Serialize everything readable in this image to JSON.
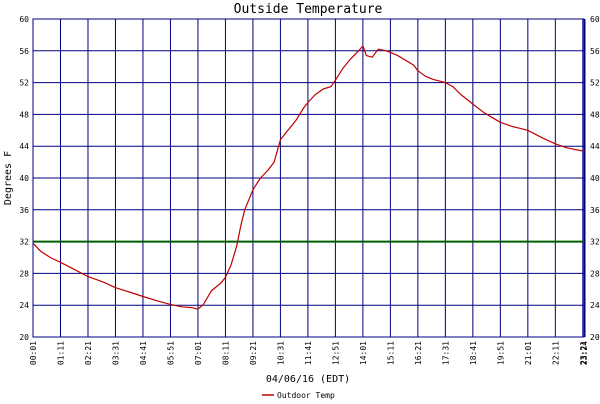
{
  "chart_data": {
    "type": "line",
    "title": "Outside Temperature",
    "xlabel": "04/06/16 (EDT)",
    "ylabel": "Degrees F",
    "ylim": [
      20,
      60
    ],
    "yticks": [
      20,
      24,
      28,
      32,
      36,
      40,
      44,
      48,
      52,
      56,
      60
    ],
    "xlim": [
      "00:01",
      "23:24"
    ],
    "xticks": [
      "00:01",
      "01:11",
      "02:21",
      "03:31",
      "04:41",
      "05:51",
      "07:01",
      "08:11",
      "09:21",
      "10:31",
      "11:41",
      "12:51",
      "14:01",
      "15:11",
      "16:21",
      "17:31",
      "18:41",
      "19:51",
      "21:01",
      "22:11",
      "23:21",
      "23:24"
    ],
    "grid": true,
    "legend_position": "bottom-left",
    "reference_line": {
      "value": 32,
      "color": "#006000"
    },
    "colors": {
      "grid": "#000080",
      "series": "#c00000",
      "reference": "#006000"
    },
    "series": [
      {
        "name": "Outdoor Temp",
        "color": "#c00000",
        "points": [
          [
            "00:01",
            31.8
          ],
          [
            "00:20",
            30.8
          ],
          [
            "00:45",
            30.0
          ],
          [
            "01:11",
            29.4
          ],
          [
            "01:50",
            28.4
          ],
          [
            "02:21",
            27.6
          ],
          [
            "03:00",
            26.9
          ],
          [
            "03:31",
            26.2
          ],
          [
            "04:10",
            25.6
          ],
          [
            "04:41",
            25.1
          ],
          [
            "05:20",
            24.5
          ],
          [
            "05:51",
            24.1
          ],
          [
            "06:20",
            23.8
          ],
          [
            "06:45",
            23.7
          ],
          [
            "07:01",
            23.5
          ],
          [
            "07:15",
            24.1
          ],
          [
            "07:35",
            25.8
          ],
          [
            "08:00",
            26.8
          ],
          [
            "08:11",
            27.5
          ],
          [
            "08:25",
            29.0
          ],
          [
            "08:40",
            31.5
          ],
          [
            "08:50",
            34.0
          ],
          [
            "09:00",
            36.0
          ],
          [
            "09:21",
            38.5
          ],
          [
            "09:40",
            40.0
          ],
          [
            "10:00",
            41.0
          ],
          [
            "10:15",
            42.0
          ],
          [
            "10:31",
            44.8
          ],
          [
            "10:50",
            46.0
          ],
          [
            "11:10",
            47.2
          ],
          [
            "11:30",
            48.8
          ],
          [
            "11:41",
            49.5
          ],
          [
            "12:00",
            50.5
          ],
          [
            "12:20",
            51.2
          ],
          [
            "12:40",
            51.5
          ],
          [
            "12:51",
            52.3
          ],
          [
            "13:10",
            53.8
          ],
          [
            "13:30",
            55.0
          ],
          [
            "13:50",
            56.0
          ],
          [
            "14:01",
            56.6
          ],
          [
            "14:10",
            55.4
          ],
          [
            "14:25",
            55.2
          ],
          [
            "14:40",
            56.2
          ],
          [
            "15:00",
            56.0
          ],
          [
            "15:11",
            55.8
          ],
          [
            "15:30",
            55.4
          ],
          [
            "15:50",
            54.8
          ],
          [
            "16:10",
            54.2
          ],
          [
            "16:21",
            53.5
          ],
          [
            "16:40",
            52.8
          ],
          [
            "17:00",
            52.4
          ],
          [
            "17:31",
            52.0
          ],
          [
            "17:50",
            51.5
          ],
          [
            "18:10",
            50.5
          ],
          [
            "18:41",
            49.3
          ],
          [
            "19:10",
            48.2
          ],
          [
            "19:51",
            47.0
          ],
          [
            "20:20",
            46.5
          ],
          [
            "21:01",
            46.0
          ],
          [
            "21:40",
            45.0
          ],
          [
            "22:11",
            44.3
          ],
          [
            "22:40",
            43.8
          ],
          [
            "23:21",
            43.4
          ],
          [
            "23:24",
            43.4
          ]
        ]
      }
    ]
  }
}
